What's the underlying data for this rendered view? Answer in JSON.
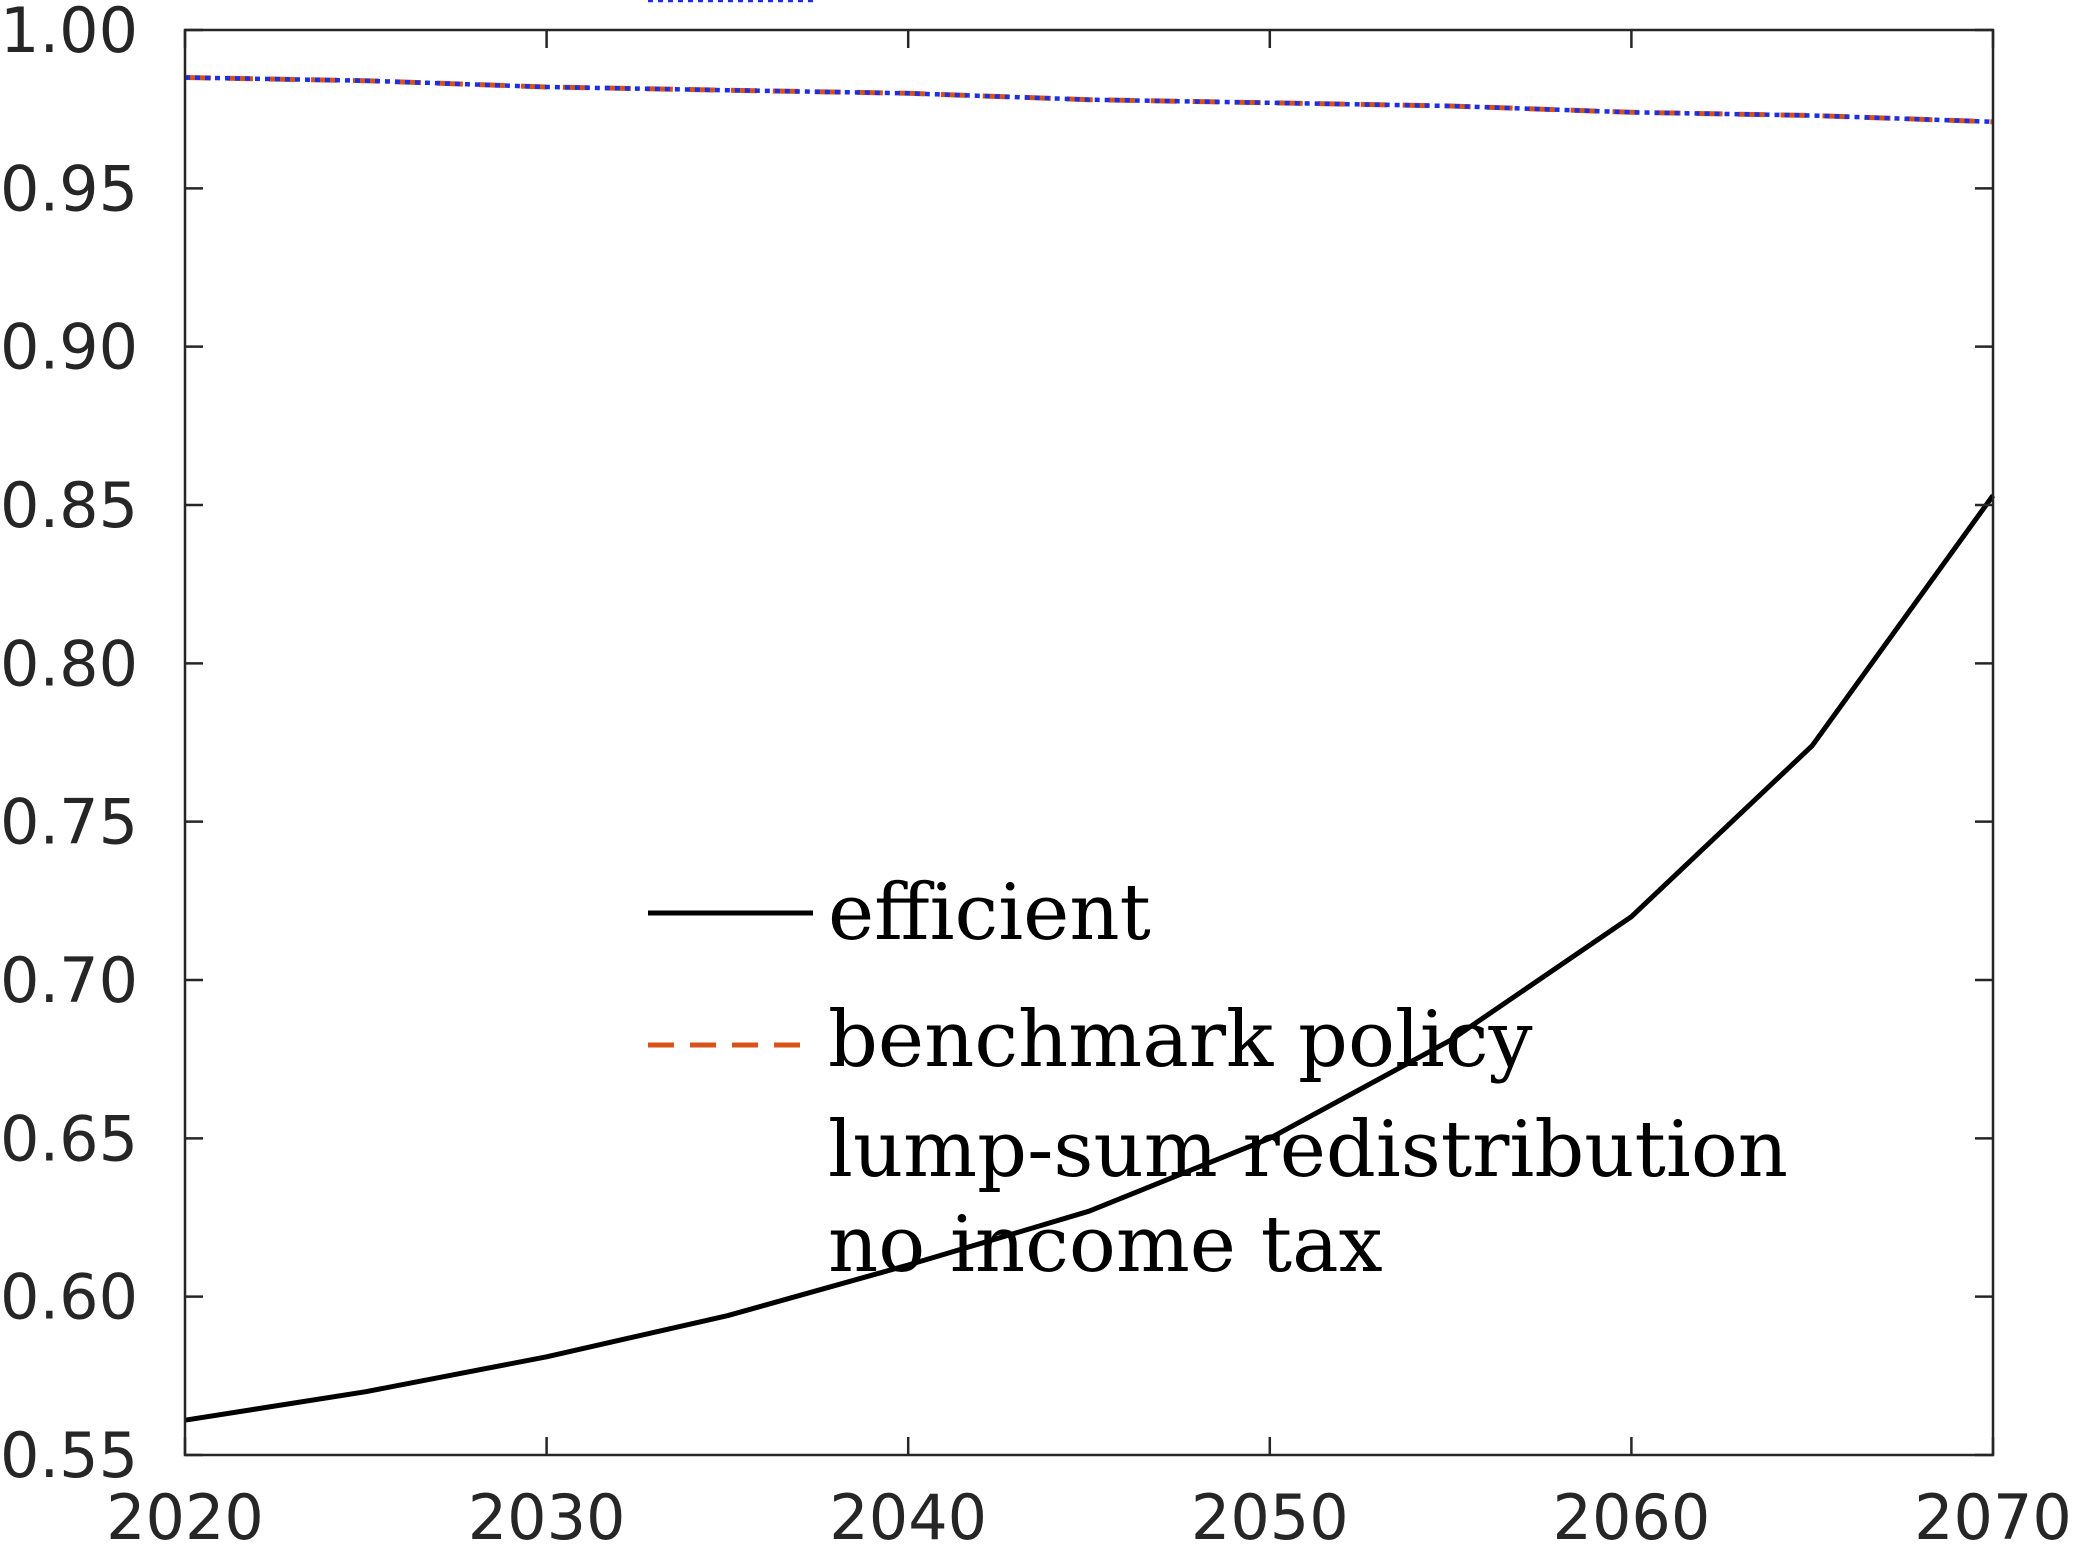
{
  "chart_data": {
    "type": "line",
    "title": "",
    "xlabel": "",
    "ylabel": "",
    "xlim": [
      2020,
      2070
    ],
    "ylim": [
      0.55,
      1.0
    ],
    "xticks": [
      2020,
      2030,
      2040,
      2050,
      2060,
      2070
    ],
    "xtick_labels": [
      "2020",
      "2030",
      "2040",
      "2050",
      "2060",
      "2070"
    ],
    "yticks": [
      0.55,
      0.6,
      0.65,
      0.7,
      0.75,
      0.8,
      0.85,
      0.9,
      0.95,
      1.0
    ],
    "ytick_labels": [
      "0.55",
      "0.60",
      "0.65",
      "0.70",
      "0.75",
      "0.80",
      "0.85",
      "0.90",
      "0.95",
      "1.00"
    ],
    "grid": false,
    "legend_position": "lower-center",
    "series": [
      {
        "name": "efficient",
        "color": "#000000",
        "style": "solid",
        "x": [
          2020,
          2025,
          2030,
          2035,
          2040,
          2045,
          2050,
          2055,
          2060,
          2065,
          2070
        ],
        "y": [
          0.561,
          0.57,
          0.581,
          0.594,
          0.61,
          0.627,
          0.65,
          0.681,
          0.72,
          0.774,
          0.853
        ]
      },
      {
        "name": "benchmark policy",
        "color": "#D95319",
        "style": "dashed",
        "x": [
          2020,
          2025,
          2030,
          2035,
          2040,
          2045,
          2050,
          2055,
          2060,
          2065,
          2070
        ],
        "y": [
          0.985,
          0.984,
          0.982,
          0.981,
          0.98,
          0.978,
          0.977,
          0.976,
          0.974,
          0.973,
          0.971
        ]
      },
      {
        "name": "lump-sum redistribution",
        "color": "#1F2FE0",
        "style": "dotted",
        "x": [
          2020,
          2025,
          2030,
          2035,
          2040,
          2045,
          2050,
          2055,
          2060,
          2065,
          2070
        ],
        "y": [
          0.985,
          0.984,
          0.982,
          0.981,
          0.98,
          0.978,
          0.977,
          0.976,
          0.974,
          0.973,
          0.971
        ]
      }
    ],
    "legend_entries": [
      {
        "label": "efficient",
        "color": "#000000",
        "style": "solid"
      },
      {
        "label": "benchmark policy",
        "color": "#D95319",
        "style": "dashed"
      },
      {
        "label": "lump-sum redistribution",
        "color": "#1F2FE0",
        "style": "dotted"
      },
      {
        "label": "no income tax",
        "color": "",
        "style": "none"
      }
    ]
  }
}
